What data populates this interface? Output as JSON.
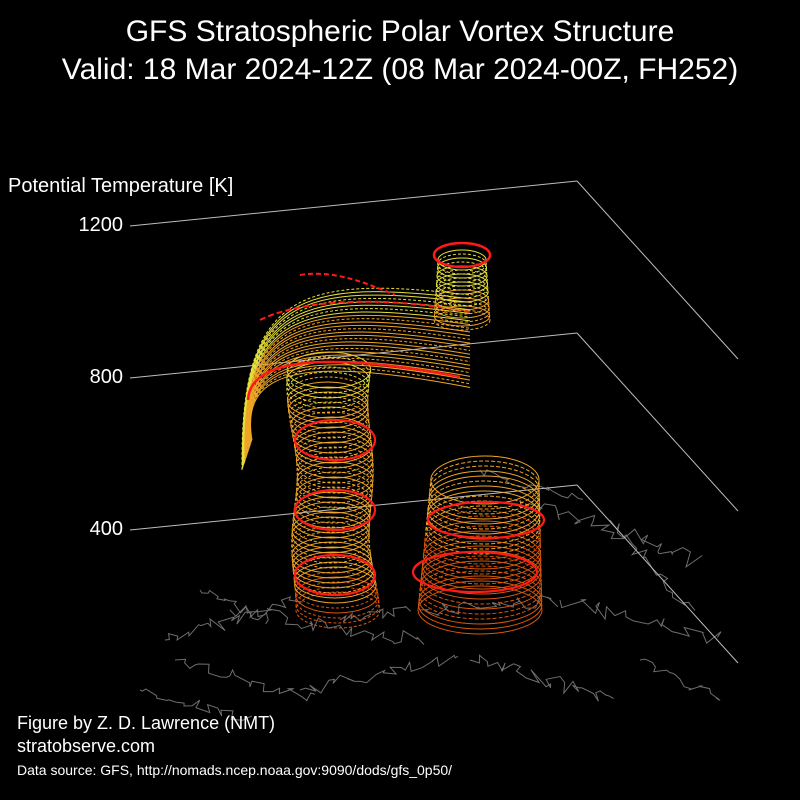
{
  "title_line_1": "GFS Stratospheric Polar Vortex Structure",
  "title_line_2": "Valid: 18 Mar 2024-12Z  (08 Mar 2024-00Z, FH252)",
  "credits": {
    "author": "Figure by Z. D. Lawrence (NMT)",
    "website": "stratobserve.com",
    "source": "Data source: GFS, http://nomads.ncep.noaa.gov:9090/dods/gfs_0p50/"
  },
  "colors": {
    "background": "#000000",
    "text": "#ffffff",
    "grid": "#bdbdbd",
    "coastline": "#6e6e6e",
    "contour_low": "#d9570a",
    "contour_mid": "#f0a626",
    "contour_high": "#e6e03a",
    "highlight": "#ff1a1a"
  },
  "chart_data": {
    "type": "3d-isosurface",
    "zlabel": "Potential Temperature [K]",
    "z_ticks": [
      400,
      800,
      1200
    ],
    "z_tick_labels": [
      "400",
      "800",
      "1200"
    ],
    "z_range": [
      400,
      1200
    ],
    "structures": [
      {
        "name": "vortex-column-west",
        "theta_bottom": 350,
        "theta_top": 850
      },
      {
        "name": "vortex-upper-arc",
        "theta_bottom": 800,
        "theta_top": 1100
      },
      {
        "name": "vortex-upper-lobe",
        "theta_bottom": 1000,
        "theta_top": 1200
      },
      {
        "name": "vortex-lobe-east",
        "theta_bottom": 350,
        "theta_top": 500
      }
    ]
  }
}
